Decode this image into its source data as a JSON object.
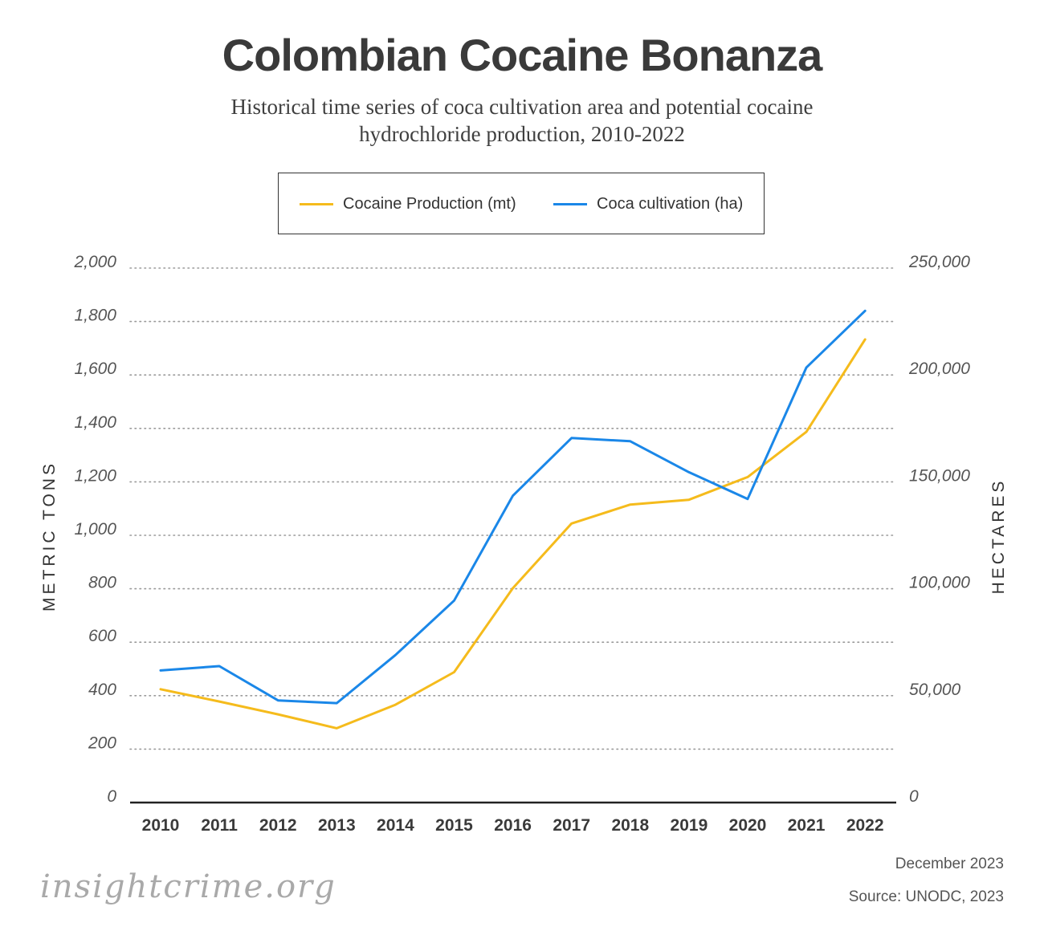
{
  "title": "Colombian Cocaine Bonanza",
  "subtitle": "Historical time series of coca cultivation area and potential cocaine hydrochloride production, 2010-2022",
  "footer": {
    "logo": "insightcrime.org",
    "date": "December 2023",
    "source": "Source: UNODC, 2023"
  },
  "chart_data": {
    "type": "line",
    "title": "Colombian Cocaine Bonanza",
    "subtitle": "Historical time series of coca cultivation area and potential cocaine hydrochloride production, 2010-2022",
    "x": [
      "2010",
      "2011",
      "2012",
      "2013",
      "2014",
      "2015",
      "2016",
      "2017",
      "2018",
      "2019",
      "2020",
      "2021",
      "2022"
    ],
    "ylabel": "METRIC TONS",
    "y2label": "HECTARES",
    "ylim": [
      0,
      2000
    ],
    "y2lim": [
      0,
      250000
    ],
    "yticks": [
      "0",
      "200",
      "400",
      "600",
      "800",
      "1,000",
      "1,200",
      "1,400",
      "1,600",
      "1,800",
      "2,000"
    ],
    "y2ticks": [
      "0",
      "50,000",
      "100,000",
      "150,000",
      "200,000",
      "250,000"
    ],
    "grid": true,
    "legend_position": "top",
    "series": [
      {
        "name": "Cocaine Production (mt)",
        "axis": "left",
        "color": "#f5bb1c",
        "values": [
          424,
          378,
          330,
          278,
          366,
          488,
          802,
          1044,
          1115,
          1133,
          1218,
          1387,
          1733
        ]
      },
      {
        "name": "Coca cultivation (ha)",
        "axis": "right",
        "color": "#1a87e8",
        "values": [
          61800,
          63800,
          47800,
          46500,
          69000,
          94500,
          143500,
          170500,
          169000,
          154500,
          142000,
          203500,
          230000
        ]
      }
    ]
  }
}
